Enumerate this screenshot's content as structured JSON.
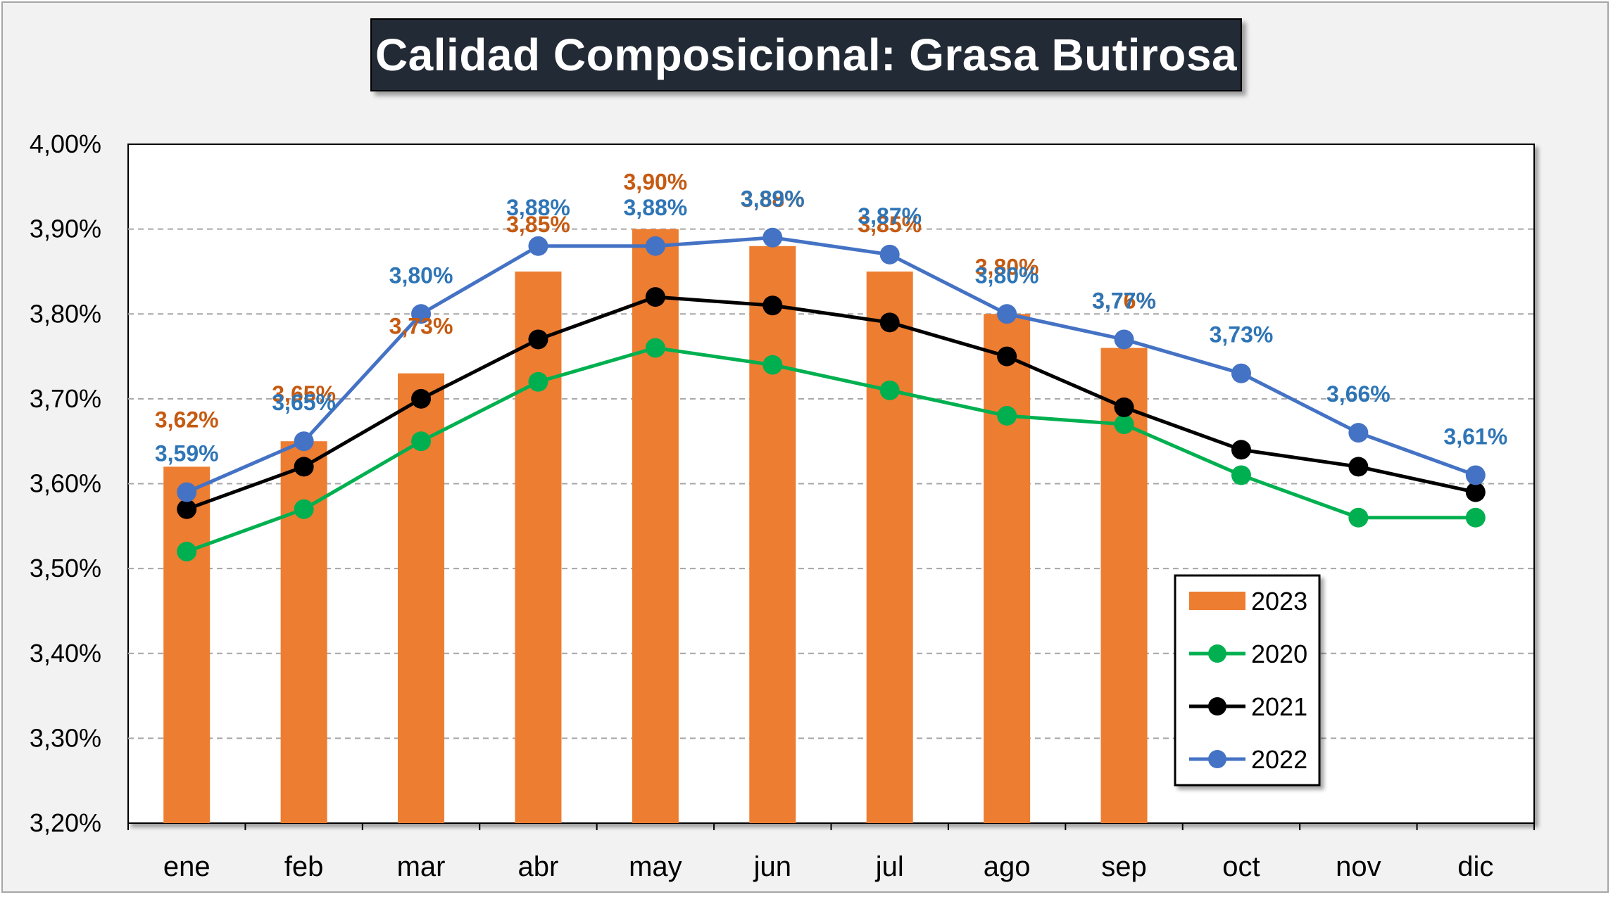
{
  "title": "Calidad Composicional: Grasa Butirosa",
  "colors": {
    "bar_2023": "#ed7d31",
    "line_2020": "#00b050",
    "line_2021": "#000000",
    "line_2022": "#4472c4",
    "label_2023": "#c55a11",
    "label_2022": "#2e75b6"
  },
  "chart_data": {
    "type": "bar",
    "title": "Calidad Composicional: Grasa Butirosa",
    "categories": [
      "ene",
      "feb",
      "mar",
      "abr",
      "may",
      "jun",
      "jul",
      "ago",
      "sep",
      "oct",
      "nov",
      "dic"
    ],
    "ylim": [
      3.2,
      4.0
    ],
    "yticks": [
      "3,20%",
      "3,30%",
      "3,40%",
      "3,50%",
      "3,60%",
      "3,70%",
      "3,80%",
      "3,90%",
      "4,00%"
    ],
    "ytick_values": [
      3.2,
      3.3,
      3.4,
      3.5,
      3.6,
      3.7,
      3.8,
      3.9,
      4.0
    ],
    "grid": true,
    "legend_position": "bottom-right",
    "series": [
      {
        "name": "2023",
        "type": "bar",
        "values": [
          3.62,
          3.65,
          3.73,
          3.85,
          3.9,
          3.88,
          3.85,
          3.8,
          3.76,
          null,
          null,
          null
        ],
        "labels": [
          "3,62%",
          "3,65%",
          "3,73%",
          "3,85%",
          "3,90%",
          "3,88%",
          "3,85%",
          "3,80%",
          "3,76%",
          "",
          "",
          ""
        ]
      },
      {
        "name": "2020",
        "type": "line",
        "values": [
          3.52,
          3.57,
          3.65,
          3.72,
          3.76,
          3.74,
          3.71,
          3.68,
          3.67,
          3.61,
          3.56,
          3.56
        ]
      },
      {
        "name": "2021",
        "type": "line",
        "values": [
          3.57,
          3.62,
          3.7,
          3.77,
          3.82,
          3.81,
          3.79,
          3.75,
          3.69,
          3.64,
          3.62,
          3.59
        ]
      },
      {
        "name": "2022",
        "type": "line",
        "values": [
          3.59,
          3.65,
          3.8,
          3.88,
          3.88,
          3.89,
          3.87,
          3.8,
          3.77,
          3.73,
          3.66,
          3.61
        ],
        "labels": [
          "3,59%",
          "3,65%",
          "3,80%",
          "3,88%",
          "3,88%",
          "3,89%",
          "3,87%",
          "3,80%",
          "3,77%",
          "3,73%",
          "3,66%",
          "3,61%"
        ]
      }
    ],
    "legend": [
      "2023",
      "2020",
      "2021",
      "2022"
    ]
  }
}
